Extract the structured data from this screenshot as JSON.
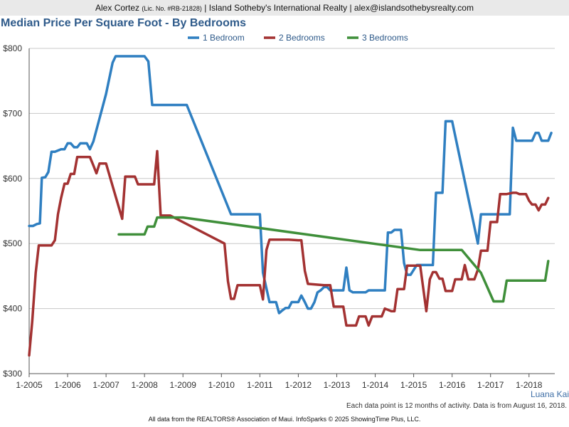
{
  "header": {
    "name": "Alex Cortez",
    "license": "(Lic. No. #RB-21828)",
    "rest": "| Island Sotheby's International Realty | alex@islandsothebysrealty.com"
  },
  "chart_data": {
    "type": "line",
    "title": "Median Price Per Square Foot - By Bedrooms",
    "x_axis": {
      "min": 2005,
      "max": 2018.67,
      "ticks": [
        {
          "value": 2005,
          "label": "1-2005"
        },
        {
          "value": 2006,
          "label": "1-2006"
        },
        {
          "value": 2007,
          "label": "1-2007"
        },
        {
          "value": 2008,
          "label": "1-2008"
        },
        {
          "value": 2009,
          "label": "1-2009"
        },
        {
          "value": 2010,
          "label": "1-2010"
        },
        {
          "value": 2011,
          "label": "1-2011"
        },
        {
          "value": 2012,
          "label": "1-2012"
        },
        {
          "value": 2013,
          "label": "1-2013"
        },
        {
          "value": 2014,
          "label": "1-2014"
        },
        {
          "value": 2015,
          "label": "1-2015"
        },
        {
          "value": 2016,
          "label": "1-2016"
        },
        {
          "value": 2017,
          "label": "1-2017"
        },
        {
          "value": 2018,
          "label": "1-2018"
        }
      ]
    },
    "y_axis": {
      "min": 300,
      "max": 800,
      "ticks": [
        {
          "value": 300,
          "label": "$300"
        },
        {
          "value": 400,
          "label": "$400"
        },
        {
          "value": 500,
          "label": "$500"
        },
        {
          "value": 600,
          "label": "$600"
        },
        {
          "value": 700,
          "label": "$700"
        },
        {
          "value": 800,
          "label": "$800"
        }
      ]
    },
    "grid": true,
    "legend_position": "top",
    "series": [
      {
        "name": "1 Bedroom",
        "color": "#2f7fc1",
        "points": [
          [
            2005,
            527
          ],
          [
            2005.1,
            527
          ],
          [
            2005.2,
            530
          ],
          [
            2005.28,
            531
          ],
          [
            2005.33,
            601
          ],
          [
            2005.42,
            602
          ],
          [
            2005.5,
            610
          ],
          [
            2005.58,
            641
          ],
          [
            2005.67,
            641
          ],
          [
            2005.75,
            643
          ],
          [
            2005.83,
            645
          ],
          [
            2005.92,
            645
          ],
          [
            2006,
            654
          ],
          [
            2006.08,
            654
          ],
          [
            2006.17,
            648
          ],
          [
            2006.25,
            648
          ],
          [
            2006.33,
            654
          ],
          [
            2006.42,
            654
          ],
          [
            2006.5,
            654
          ],
          [
            2006.58,
            645
          ],
          [
            2006.67,
            657
          ],
          [
            2007,
            730
          ],
          [
            2007.17,
            778
          ],
          [
            2007.25,
            788
          ],
          [
            2007.5,
            788
          ],
          [
            2007.75,
            788
          ],
          [
            2008,
            788
          ],
          [
            2008.1,
            780
          ],
          [
            2008.2,
            713
          ],
          [
            2008.42,
            713
          ],
          [
            2008.67,
            713
          ],
          [
            2009.1,
            713
          ],
          [
            2010.25,
            545
          ],
          [
            2010.5,
            545
          ],
          [
            2010.75,
            545
          ],
          [
            2011,
            545
          ],
          [
            2011.08,
            455
          ],
          [
            2011.25,
            410
          ],
          [
            2011.42,
            410
          ],
          [
            2011.5,
            393
          ],
          [
            2011.58,
            397
          ],
          [
            2011.67,
            401
          ],
          [
            2011.75,
            401
          ],
          [
            2011.83,
            410
          ],
          [
            2011.92,
            410
          ],
          [
            2012,
            410
          ],
          [
            2012.08,
            420
          ],
          [
            2012.17,
            410
          ],
          [
            2012.25,
            400
          ],
          [
            2012.33,
            400
          ],
          [
            2012.42,
            410
          ],
          [
            2012.5,
            425
          ],
          [
            2012.58,
            428
          ],
          [
            2012.67,
            433
          ],
          [
            2012.75,
            433
          ],
          [
            2012.83,
            428
          ],
          [
            2012.92,
            428
          ],
          [
            2013,
            428
          ],
          [
            2013.08,
            428
          ],
          [
            2013.17,
            428
          ],
          [
            2013.25,
            463
          ],
          [
            2013.33,
            428
          ],
          [
            2013.42,
            425
          ],
          [
            2013.5,
            425
          ],
          [
            2013.67,
            425
          ],
          [
            2013.75,
            425
          ],
          [
            2013.83,
            428
          ],
          [
            2014,
            428
          ],
          [
            2014.25,
            428
          ],
          [
            2014.33,
            517
          ],
          [
            2014.42,
            517
          ],
          [
            2014.5,
            521
          ],
          [
            2014.67,
            521
          ],
          [
            2014.75,
            470
          ],
          [
            2014.83,
            452
          ],
          [
            2014.92,
            452
          ],
          [
            2015.08,
            467
          ],
          [
            2015.5,
            467
          ],
          [
            2015.58,
            578
          ],
          [
            2015.75,
            578
          ],
          [
            2015.83,
            688
          ],
          [
            2016,
            688
          ],
          [
            2016.67,
            500
          ],
          [
            2016.75,
            545
          ],
          [
            2017,
            545
          ],
          [
            2017.5,
            545
          ],
          [
            2017.58,
            678
          ],
          [
            2017.67,
            658
          ],
          [
            2018,
            658
          ],
          [
            2018.08,
            658
          ],
          [
            2018.17,
            670
          ],
          [
            2018.25,
            670
          ],
          [
            2018.33,
            658
          ],
          [
            2018.5,
            658
          ],
          [
            2018.58,
            670
          ]
        ]
      },
      {
        "name": "2 Bedrooms",
        "color": "#a33232",
        "points": [
          [
            2005,
            328
          ],
          [
            2005.08,
            380
          ],
          [
            2005.17,
            455
          ],
          [
            2005.25,
            497
          ],
          [
            2005.5,
            497
          ],
          [
            2005.58,
            497
          ],
          [
            2005.67,
            505
          ],
          [
            2005.75,
            545
          ],
          [
            2005.83,
            570
          ],
          [
            2005.92,
            592
          ],
          [
            2006,
            592
          ],
          [
            2006.08,
            607
          ],
          [
            2006.17,
            607
          ],
          [
            2006.25,
            633
          ],
          [
            2006.5,
            633
          ],
          [
            2006.58,
            633
          ],
          [
            2006.67,
            620
          ],
          [
            2006.75,
            608
          ],
          [
            2006.83,
            623
          ],
          [
            2007,
            623
          ],
          [
            2007.42,
            538
          ],
          [
            2007.5,
            603
          ],
          [
            2007.75,
            603
          ],
          [
            2007.83,
            591
          ],
          [
            2008,
            591
          ],
          [
            2008.25,
            591
          ],
          [
            2008.33,
            642
          ],
          [
            2008.42,
            543
          ],
          [
            2008.5,
            543
          ],
          [
            2008.67,
            543
          ],
          [
            2010.08,
            500
          ],
          [
            2010.17,
            442
          ],
          [
            2010.25,
            415
          ],
          [
            2010.33,
            415
          ],
          [
            2010.42,
            436
          ],
          [
            2010.5,
            436
          ],
          [
            2011,
            436
          ],
          [
            2011.08,
            414
          ],
          [
            2011.17,
            490
          ],
          [
            2011.25,
            506
          ],
          [
            2011.5,
            506
          ],
          [
            2011.75,
            506
          ],
          [
            2012,
            505
          ],
          [
            2012.08,
            505
          ],
          [
            2012.17,
            458
          ],
          [
            2012.25,
            438
          ],
          [
            2012.67,
            436
          ],
          [
            2012.83,
            436
          ],
          [
            2012.92,
            403
          ],
          [
            2013.17,
            403
          ],
          [
            2013.25,
            374
          ],
          [
            2013.5,
            374
          ],
          [
            2013.58,
            388
          ],
          [
            2013.75,
            388
          ],
          [
            2013.83,
            374
          ],
          [
            2013.92,
            388
          ],
          [
            2014.17,
            388
          ],
          [
            2014.25,
            400
          ],
          [
            2014.42,
            396
          ],
          [
            2014.5,
            396
          ],
          [
            2014.58,
            430
          ],
          [
            2014.75,
            430
          ],
          [
            2014.83,
            466
          ],
          [
            2015.17,
            466
          ],
          [
            2015.33,
            396
          ],
          [
            2015.42,
            445
          ],
          [
            2015.5,
            456
          ],
          [
            2015.58,
            456
          ],
          [
            2015.67,
            446
          ],
          [
            2015.75,
            446
          ],
          [
            2015.83,
            427
          ],
          [
            2015.92,
            427
          ],
          [
            2016,
            427
          ],
          [
            2016.08,
            445
          ],
          [
            2016.17,
            445
          ],
          [
            2016.25,
            445
          ],
          [
            2016.33,
            467
          ],
          [
            2016.42,
            445
          ],
          [
            2016.5,
            445
          ],
          [
            2016.58,
            445
          ],
          [
            2016.67,
            460
          ],
          [
            2016.75,
            489
          ],
          [
            2016.83,
            489
          ],
          [
            2016.92,
            489
          ],
          [
            2017,
            533
          ],
          [
            2017.08,
            533
          ],
          [
            2017.17,
            533
          ],
          [
            2017.25,
            576
          ],
          [
            2017.42,
            576
          ],
          [
            2017.5,
            577
          ],
          [
            2017.58,
            578
          ],
          [
            2017.67,
            578
          ],
          [
            2017.75,
            576
          ],
          [
            2017.92,
            576
          ],
          [
            2018,
            566
          ],
          [
            2018.08,
            560
          ],
          [
            2018.17,
            560
          ],
          [
            2018.25,
            551
          ],
          [
            2018.33,
            560
          ],
          [
            2018.42,
            560
          ],
          [
            2018.5,
            570
          ]
        ]
      },
      {
        "name": "3 Bedrooms",
        "color": "#3f8f3a",
        "points": [
          [
            2007.33,
            514
          ],
          [
            2007.5,
            514
          ],
          [
            2007.75,
            514
          ],
          [
            2008,
            514
          ],
          [
            2008.08,
            526
          ],
          [
            2008.25,
            526
          ],
          [
            2008.33,
            540
          ],
          [
            2008.58,
            540
          ],
          [
            2009,
            540
          ],
          [
            2015.17,
            490
          ],
          [
            2015.5,
            490
          ],
          [
            2015.83,
            490
          ],
          [
            2016.25,
            490
          ],
          [
            2016.75,
            455
          ],
          [
            2017.08,
            411
          ],
          [
            2017.33,
            411
          ],
          [
            2017.42,
            443
          ],
          [
            2017.67,
            443
          ],
          [
            2017.92,
            443
          ],
          [
            2018.08,
            443
          ],
          [
            2018.25,
            443
          ],
          [
            2018.42,
            443
          ],
          [
            2018.5,
            473
          ]
        ]
      }
    ]
  },
  "area_label": "Luana Kai",
  "note": "Each data point is 12 months of activity. Data is from August 16, 2018.",
  "footer": "All data from the REALTORS® Association of Maui. InfoSparks © 2025 ShowingTime Plus, LLC."
}
